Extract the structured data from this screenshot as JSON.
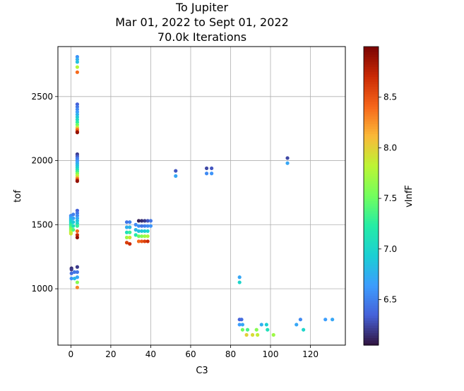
{
  "chart_data": {
    "type": "scatter",
    "title": "To Jupiter",
    "subtitle_lines": [
      "Mar 01, 2022 to Sept 01, 2022",
      "70.0k Iterations"
    ],
    "xlabel": "C3",
    "ylabel": "tof",
    "xlim": [
      -6.5,
      137.5
    ],
    "ylim": [
      560,
      2890
    ],
    "x_ticks": [
      0,
      20,
      40,
      60,
      80,
      100,
      120
    ],
    "y_ticks": [
      1000,
      1500,
      2000,
      2500
    ],
    "grid": true,
    "colorbar": {
      "label": "vInfF",
      "colormap": "turbo",
      "range": [
        6.05,
        9.0
      ],
      "ticks": [
        6.5,
        7.0,
        7.5,
        8.0,
        8.5
      ]
    },
    "points": [
      {
        "x": 0.0,
        "y": 1570,
        "c": 6.55
      },
      {
        "x": 0.0,
        "y": 1560,
        "c": 6.6
      },
      {
        "x": 0.0,
        "y": 1550,
        "c": 6.7
      },
      {
        "x": 0.0,
        "y": 1540,
        "c": 6.8
      },
      {
        "x": 0.0,
        "y": 1530,
        "c": 6.9
      },
      {
        "x": 0.0,
        "y": 1520,
        "c": 7.0
      },
      {
        "x": 0.0,
        "y": 1510,
        "c": 7.1
      },
      {
        "x": 0.0,
        "y": 1500,
        "c": 7.2
      },
      {
        "x": 0.0,
        "y": 1490,
        "c": 7.3
      },
      {
        "x": 0.0,
        "y": 1480,
        "c": 7.4
      },
      {
        "x": 0.0,
        "y": 1470,
        "c": 7.5
      },
      {
        "x": 0.0,
        "y": 1460,
        "c": 7.6
      },
      {
        "x": 0.0,
        "y": 1450,
        "c": 7.7
      },
      {
        "x": 0.0,
        "y": 1440,
        "c": 7.8
      },
      {
        "x": 0.0,
        "y": 1430,
        "c": 7.9
      },
      {
        "x": 1.2,
        "y": 1580,
        "c": 6.5
      },
      {
        "x": 1.2,
        "y": 1550,
        "c": 6.7
      },
      {
        "x": 1.2,
        "y": 1520,
        "c": 6.9
      },
      {
        "x": 1.2,
        "y": 1490,
        "c": 7.1
      },
      {
        "x": 1.2,
        "y": 1460,
        "c": 7.4
      },
      {
        "x": 3.2,
        "y": 1610,
        "c": 6.35
      },
      {
        "x": 3.2,
        "y": 1590,
        "c": 6.45
      },
      {
        "x": 3.2,
        "y": 1570,
        "c": 6.55
      },
      {
        "x": 3.2,
        "y": 1550,
        "c": 6.7
      },
      {
        "x": 3.2,
        "y": 1530,
        "c": 6.85
      },
      {
        "x": 3.2,
        "y": 1510,
        "c": 7.0
      },
      {
        "x": 3.2,
        "y": 1490,
        "c": 7.3
      },
      {
        "x": 3.2,
        "y": 1450,
        "c": 8.4
      },
      {
        "x": 3.2,
        "y": 1420,
        "c": 8.7
      },
      {
        "x": 3.2,
        "y": 1400,
        "c": 8.9
      },
      {
        "x": 0.3,
        "y": 1160,
        "c": 6.15
      },
      {
        "x": 0.3,
        "y": 1150,
        "c": 6.2
      },
      {
        "x": 0.3,
        "y": 1120,
        "c": 6.4
      },
      {
        "x": 0.3,
        "y": 1080,
        "c": 6.6
      },
      {
        "x": 1.8,
        "y": 1130,
        "c": 6.45
      },
      {
        "x": 1.8,
        "y": 1080,
        "c": 6.8
      },
      {
        "x": 3.2,
        "y": 1170,
        "c": 6.2
      },
      {
        "x": 3.2,
        "y": 1130,
        "c": 6.45
      },
      {
        "x": 3.2,
        "y": 1090,
        "c": 6.7
      },
      {
        "x": 3.2,
        "y": 1050,
        "c": 7.6
      },
      {
        "x": 3.2,
        "y": 1010,
        "c": 8.3
      },
      {
        "x": 3.2,
        "y": 2810,
        "c": 6.6
      },
      {
        "x": 3.2,
        "y": 2790,
        "c": 6.75
      },
      {
        "x": 3.2,
        "y": 2770,
        "c": 6.85
      },
      {
        "x": 3.2,
        "y": 2730,
        "c": 7.8
      },
      {
        "x": 3.2,
        "y": 2690,
        "c": 8.4
      },
      {
        "x": 3.2,
        "y": 2440,
        "c": 6.35
      },
      {
        "x": 3.2,
        "y": 2420,
        "c": 6.45
      },
      {
        "x": 3.2,
        "y": 2400,
        "c": 6.55
      },
      {
        "x": 3.2,
        "y": 2380,
        "c": 6.65
      },
      {
        "x": 3.2,
        "y": 2360,
        "c": 6.75
      },
      {
        "x": 3.2,
        "y": 2340,
        "c": 6.9
      },
      {
        "x": 3.2,
        "y": 2320,
        "c": 7.05
      },
      {
        "x": 3.2,
        "y": 2300,
        "c": 7.25
      },
      {
        "x": 3.2,
        "y": 2280,
        "c": 7.5
      },
      {
        "x": 3.2,
        "y": 2260,
        "c": 7.8
      },
      {
        "x": 3.2,
        "y": 2250,
        "c": 8.1
      },
      {
        "x": 3.2,
        "y": 2240,
        "c": 8.4
      },
      {
        "x": 3.2,
        "y": 2225,
        "c": 8.7
      },
      {
        "x": 3.2,
        "y": 2220,
        "c": 8.9
      },
      {
        "x": 3.2,
        "y": 2050,
        "c": 6.2
      },
      {
        "x": 3.2,
        "y": 2035,
        "c": 6.3
      },
      {
        "x": 3.2,
        "y": 2020,
        "c": 6.45
      },
      {
        "x": 3.2,
        "y": 2005,
        "c": 6.55
      },
      {
        "x": 3.2,
        "y": 1990,
        "c": 6.65
      },
      {
        "x": 3.2,
        "y": 1975,
        "c": 6.75
      },
      {
        "x": 3.2,
        "y": 1960,
        "c": 6.85
      },
      {
        "x": 3.2,
        "y": 1945,
        "c": 6.95
      },
      {
        "x": 3.2,
        "y": 1930,
        "c": 7.1
      },
      {
        "x": 3.2,
        "y": 1915,
        "c": 7.3
      },
      {
        "x": 3.2,
        "y": 1900,
        "c": 7.55
      },
      {
        "x": 3.2,
        "y": 1885,
        "c": 7.8
      },
      {
        "x": 3.2,
        "y": 1870,
        "c": 8.0
      },
      {
        "x": 3.2,
        "y": 1860,
        "c": 8.3
      },
      {
        "x": 3.2,
        "y": 1850,
        "c": 8.6
      },
      {
        "x": 3.2,
        "y": 1840,
        "c": 8.9
      },
      {
        "x": 28.0,
        "y": 1520,
        "c": 6.45
      },
      {
        "x": 28.0,
        "y": 1480,
        "c": 6.75
      },
      {
        "x": 28.0,
        "y": 1440,
        "c": 7.1
      },
      {
        "x": 28.0,
        "y": 1400,
        "c": 7.7
      },
      {
        "x": 28.0,
        "y": 1360,
        "c": 8.6
      },
      {
        "x": 29.5,
        "y": 1520,
        "c": 6.5
      },
      {
        "x": 29.5,
        "y": 1480,
        "c": 6.8
      },
      {
        "x": 29.5,
        "y": 1440,
        "c": 7.3
      },
      {
        "x": 29.5,
        "y": 1400,
        "c": 7.9
      },
      {
        "x": 29.5,
        "y": 1350,
        "c": 8.7
      },
      {
        "x": 32.5,
        "y": 1500,
        "c": 6.55
      },
      {
        "x": 32.5,
        "y": 1460,
        "c": 6.8
      },
      {
        "x": 32.5,
        "y": 1420,
        "c": 7.2
      },
      {
        "x": 34.0,
        "y": 1530,
        "c": 6.1
      },
      {
        "x": 34.0,
        "y": 1490,
        "c": 6.6
      },
      {
        "x": 34.0,
        "y": 1450,
        "c": 6.85
      },
      {
        "x": 34.0,
        "y": 1410,
        "c": 7.5
      },
      {
        "x": 34.0,
        "y": 1370,
        "c": 8.4
      },
      {
        "x": 35.5,
        "y": 1530,
        "c": 6.15
      },
      {
        "x": 35.5,
        "y": 1490,
        "c": 6.45
      },
      {
        "x": 35.5,
        "y": 1450,
        "c": 6.9
      },
      {
        "x": 35.5,
        "y": 1410,
        "c": 7.6
      },
      {
        "x": 35.5,
        "y": 1370,
        "c": 8.5
      },
      {
        "x": 37.0,
        "y": 1530,
        "c": 6.2
      },
      {
        "x": 37.0,
        "y": 1490,
        "c": 6.5
      },
      {
        "x": 37.0,
        "y": 1450,
        "c": 6.95
      },
      {
        "x": 37.0,
        "y": 1410,
        "c": 7.7
      },
      {
        "x": 37.0,
        "y": 1370,
        "c": 8.6
      },
      {
        "x": 38.5,
        "y": 1530,
        "c": 6.3
      },
      {
        "x": 38.5,
        "y": 1490,
        "c": 6.55
      },
      {
        "x": 38.5,
        "y": 1450,
        "c": 7.0
      },
      {
        "x": 38.5,
        "y": 1410,
        "c": 7.75
      },
      {
        "x": 38.5,
        "y": 1370,
        "c": 8.7
      },
      {
        "x": 40.0,
        "y": 1530,
        "c": 6.45
      },
      {
        "x": 40.0,
        "y": 1490,
        "c": 6.6
      },
      {
        "x": 52.5,
        "y": 1920,
        "c": 6.3
      },
      {
        "x": 52.5,
        "y": 1880,
        "c": 6.7
      },
      {
        "x": 68.0,
        "y": 1940,
        "c": 6.25
      },
      {
        "x": 68.0,
        "y": 1900,
        "c": 6.55
      },
      {
        "x": 70.5,
        "y": 1940,
        "c": 6.3
      },
      {
        "x": 70.5,
        "y": 1900,
        "c": 6.6
      },
      {
        "x": 108.5,
        "y": 2020,
        "c": 6.25
      },
      {
        "x": 108.5,
        "y": 1980,
        "c": 6.7
      },
      {
        "x": 84.5,
        "y": 1090,
        "c": 6.7
      },
      {
        "x": 84.5,
        "y": 1050,
        "c": 7.0
      },
      {
        "x": 84.5,
        "y": 760,
        "c": 6.35
      },
      {
        "x": 85.5,
        "y": 760,
        "c": 6.4
      },
      {
        "x": 84.5,
        "y": 720,
        "c": 6.65
      },
      {
        "x": 86.0,
        "y": 720,
        "c": 6.7
      },
      {
        "x": 86.0,
        "y": 680,
        "c": 7.5
      },
      {
        "x": 88.5,
        "y": 680,
        "c": 7.35
      },
      {
        "x": 88.0,
        "y": 640,
        "c": 8.0
      },
      {
        "x": 91.0,
        "y": 640,
        "c": 7.95
      },
      {
        "x": 93.5,
        "y": 640,
        "c": 7.85
      },
      {
        "x": 93.0,
        "y": 680,
        "c": 7.6
      },
      {
        "x": 95.5,
        "y": 720,
        "c": 6.75
      },
      {
        "x": 98.0,
        "y": 720,
        "c": 6.95
      },
      {
        "x": 98.5,
        "y": 680,
        "c": 7.1
      },
      {
        "x": 101.5,
        "y": 640,
        "c": 7.7
      },
      {
        "x": 113.0,
        "y": 720,
        "c": 6.7
      },
      {
        "x": 115.0,
        "y": 760,
        "c": 6.55
      },
      {
        "x": 116.5,
        "y": 680,
        "c": 7.0
      },
      {
        "x": 127.5,
        "y": 760,
        "c": 6.65
      },
      {
        "x": 131.0,
        "y": 760,
        "c": 6.7
      }
    ]
  }
}
